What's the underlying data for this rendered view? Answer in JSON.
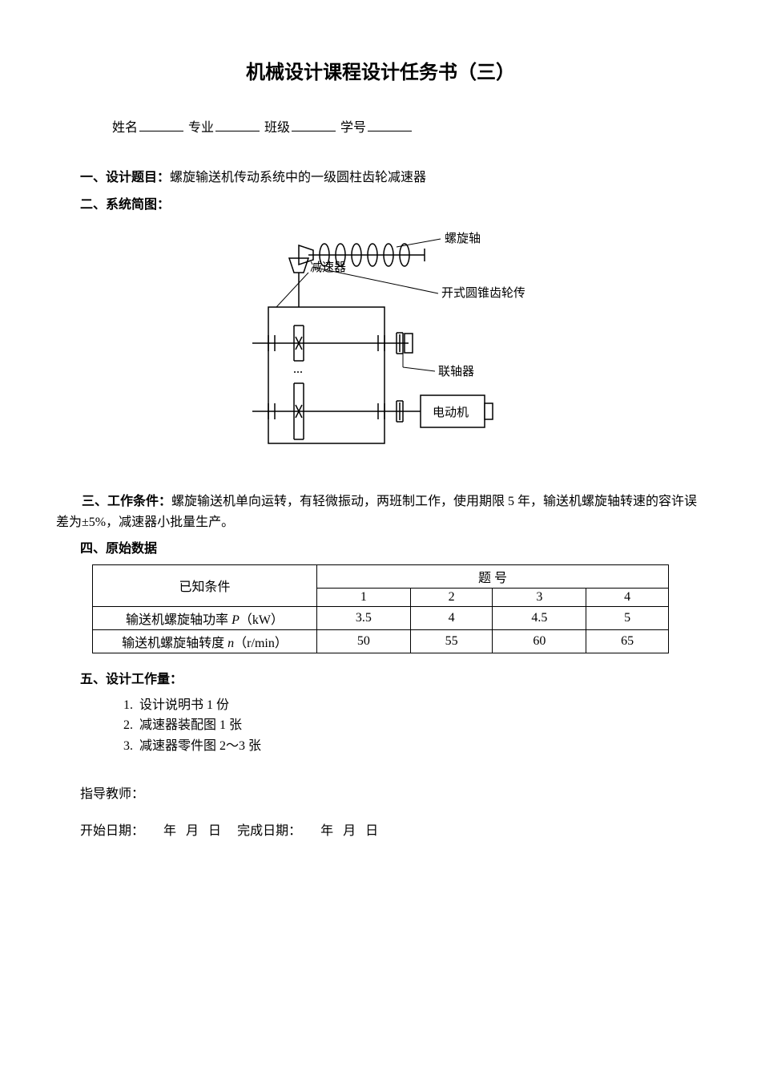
{
  "title": "机械设计课程设计任务书（三）",
  "info": {
    "name_label": "姓名",
    "major_label": "专业",
    "class_label": "班级",
    "id_label": "学号"
  },
  "section1": {
    "heading": "一、设计题目：",
    "text": "螺旋输送机传动系统中的一级圆柱齿轮减速器"
  },
  "section2": {
    "heading": "二、系统简图："
  },
  "diagram": {
    "labels": {
      "reducer": "减速器",
      "screw_shaft": "螺旋轴",
      "bevel_gear": "开式圆锥齿轮传动",
      "coupling": "联轴器",
      "motor": "电动机"
    },
    "colors": {
      "stroke": "#000000",
      "bg": "#ffffff"
    }
  },
  "section3": {
    "heading": "三、工作条件：",
    "text": "螺旋输送机单向运转，有轻微振动，两班制工作，使用期限 5 年，输送机螺旋轴转速的容许误差为±5%，减速器小批量生产。"
  },
  "section4": {
    "heading": "四、原始数据"
  },
  "table": {
    "header_conditions": "已知条件",
    "header_number": "题    号",
    "columns": [
      "1",
      "2",
      "3",
      "4"
    ],
    "rows": [
      {
        "label_prefix": "输送机螺旋轴功率 ",
        "label_var": "P",
        "label_unit": "（kW）",
        "values": [
          "3.5",
          "4",
          "4.5",
          "5"
        ]
      },
      {
        "label_prefix": "输送机螺旋轴转度 ",
        "label_var": "n",
        "label_unit": "（r/min）",
        "values": [
          "50",
          "55",
          "60",
          "65"
        ]
      }
    ]
  },
  "section5": {
    "heading": "五、设计工作量：",
    "items": [
      "设计说明书 1 份",
      "减速器装配图 1 张",
      "减速器零件图 2～3 张"
    ]
  },
  "teacher_label": "指导教师：",
  "dates": {
    "start_label": "开始日期：",
    "end_label": "完成日期：",
    "year": "年",
    "month": "月",
    "day": "日"
  }
}
